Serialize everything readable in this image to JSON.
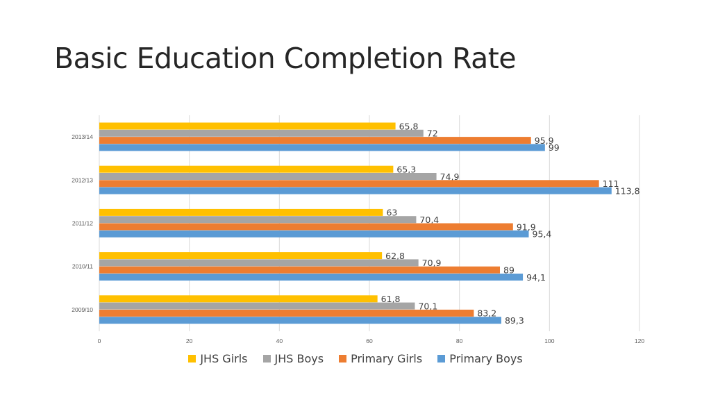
{
  "slide": {
    "title": "Basic Education Completion Rate"
  },
  "colors": {
    "jhs_girls": "#FFC000",
    "jhs_boys": "#A5A5A5",
    "primary_girls": "#ED7D31",
    "primary_boys": "#5B9BD5",
    "grid": "#D9D9D9",
    "text": "#595959"
  },
  "chart_data": {
    "type": "bar",
    "orientation": "horizontal",
    "title": "",
    "categories": [
      "2013/14",
      "2012/13",
      "2011/12",
      "2010/11",
      "2009/10"
    ],
    "series": [
      {
        "name": "JHS Girls",
        "color": "#FFC000",
        "values": [
          65.8,
          65.3,
          63,
          62.8,
          61.8
        ],
        "labels": [
          "65,8",
          "65,3",
          "63",
          "62,8",
          "61,8"
        ]
      },
      {
        "name": "JHS Boys",
        "color": "#A5A5A5",
        "values": [
          72,
          74.9,
          70.4,
          70.9,
          70.1
        ],
        "labels": [
          "72",
          "74,9",
          "70,4",
          "70,9",
          "70,1"
        ]
      },
      {
        "name": "Primary Girls",
        "color": "#ED7D31",
        "values": [
          95.9,
          111,
          91.9,
          89,
          83.2
        ],
        "labels": [
          "95,9",
          "111",
          "91,9",
          "89",
          "83,2"
        ]
      },
      {
        "name": "Primary Boys",
        "color": "#5B9BD5",
        "values": [
          99,
          113.8,
          95.4,
          94.1,
          89.3
        ],
        "labels": [
          "99",
          "113,8",
          "95,4",
          "94,1",
          "89,3"
        ]
      }
    ],
    "x_ticks": [
      "0",
      "20",
      "40",
      "60",
      "80",
      "100",
      "120"
    ],
    "xlim": [
      0,
      120
    ],
    "grid": true,
    "legend_position": "bottom"
  }
}
